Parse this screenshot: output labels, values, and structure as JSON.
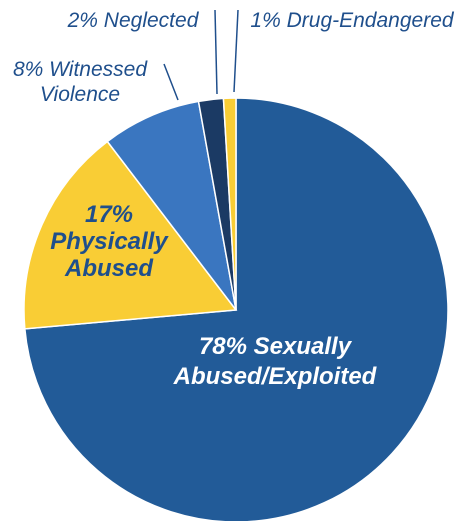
{
  "chart_data": {
    "type": "pie",
    "slices": [
      {
        "label_lines": [
          "78% Sexually",
          "Abused/Exploited"
        ],
        "value": 78,
        "color": "#225b98",
        "label_color": "#ffffff"
      },
      {
        "label_lines": [
          "17%",
          "Physically",
          "Abused"
        ],
        "value": 17,
        "color": "#f9cd35",
        "label_color": "#1f4f8c"
      },
      {
        "label_lines": [
          "8% Witnessed",
          "Violence"
        ],
        "value": 8,
        "color": "#3a76c0",
        "label_color": "#1f4f8c"
      },
      {
        "label_lines": [
          "2% Neglected"
        ],
        "value": 2,
        "color": "#1b3a64",
        "label_color": "#1f4f8c"
      },
      {
        "label_lines": [
          "1% Drug-Endangered"
        ],
        "value": 1,
        "color": "#f9cd35",
        "label_color": "#1f4f8c"
      }
    ],
    "start_angle_deg": 0,
    "direction": "clockwise",
    "legend": "none",
    "title": ""
  }
}
